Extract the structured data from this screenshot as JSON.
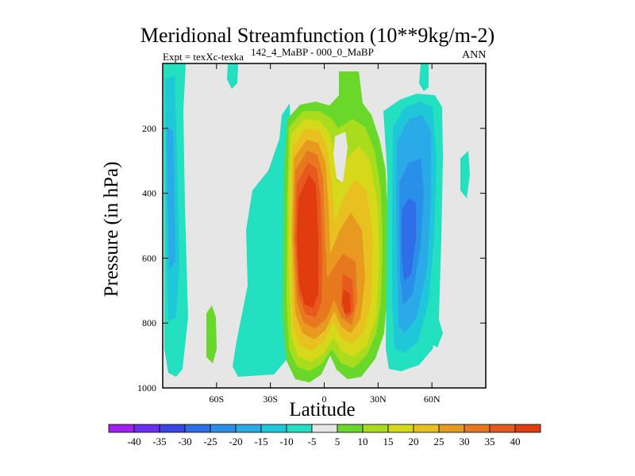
{
  "chart_data": {
    "type": "contour",
    "title": "Meridional Streamfunction (10**9kg/m-2)",
    "left_label": "Expt = texXc-texka",
    "subtitle": "142_4_MaBP - 000_0_MaBP",
    "season_label": "ANN",
    "xlabel": "Latitude",
    "ylabel": "Pressure (in hPa)",
    "x_ticks": [
      {
        "value": -60,
        "label": "60S"
      },
      {
        "value": -30,
        "label": "30S"
      },
      {
        "value": 0,
        "label": "0"
      },
      {
        "value": 30,
        "label": "30N"
      },
      {
        "value": 60,
        "label": "60N"
      }
    ],
    "y_ticks": [
      {
        "value": 200,
        "label": "200"
      },
      {
        "value": 400,
        "label": "400"
      },
      {
        "value": 600,
        "label": "600"
      },
      {
        "value": 800,
        "label": "800"
      },
      {
        "value": 1000,
        "label": "1000"
      }
    ],
    "xlim": [
      -90,
      90
    ],
    "ylim": [
      1000,
      0
    ],
    "background_color": "#e6e6e6",
    "colorbar": {
      "labels": [
        "-40",
        "-35",
        "-30",
        "-25",
        "-20",
        "-15",
        "-10",
        "-5",
        "5",
        "10",
        "15",
        "20",
        "25",
        "30",
        "35",
        "40"
      ],
      "colors": [
        "#a020f0",
        "#6a2ff0",
        "#3a45e6",
        "#2f6ee8",
        "#2a8fe8",
        "#2aaae6",
        "#1fc8d8",
        "#22e0c0",
        "#e6e6e6",
        "#6ad82a",
        "#a8dc1c",
        "#d6d81a",
        "#e8c020",
        "#e89a20",
        "#e87820",
        "#e65a1e",
        "#e03c10"
      ]
    },
    "features": [
      {
        "name": "sh-negative-cell",
        "lat_range": [
          -87,
          -80
        ],
        "p_range": [
          1000,
          0
        ],
        "peak_value": -25
      },
      {
        "name": "equatorial-positive-cell",
        "lat_range": [
          -20,
          10
        ],
        "p_range": [
          1000,
          100
        ],
        "peak_value": 40
      },
      {
        "name": "nh-positive-cell",
        "lat_range": [
          8,
          33
        ],
        "p_range": [
          1000,
          100
        ],
        "peak_value": 35
      },
      {
        "name": "nh-negative-cell",
        "lat_range": [
          35,
          65
        ],
        "p_range": [
          1000,
          120
        ],
        "peak_value": -25
      }
    ]
  }
}
